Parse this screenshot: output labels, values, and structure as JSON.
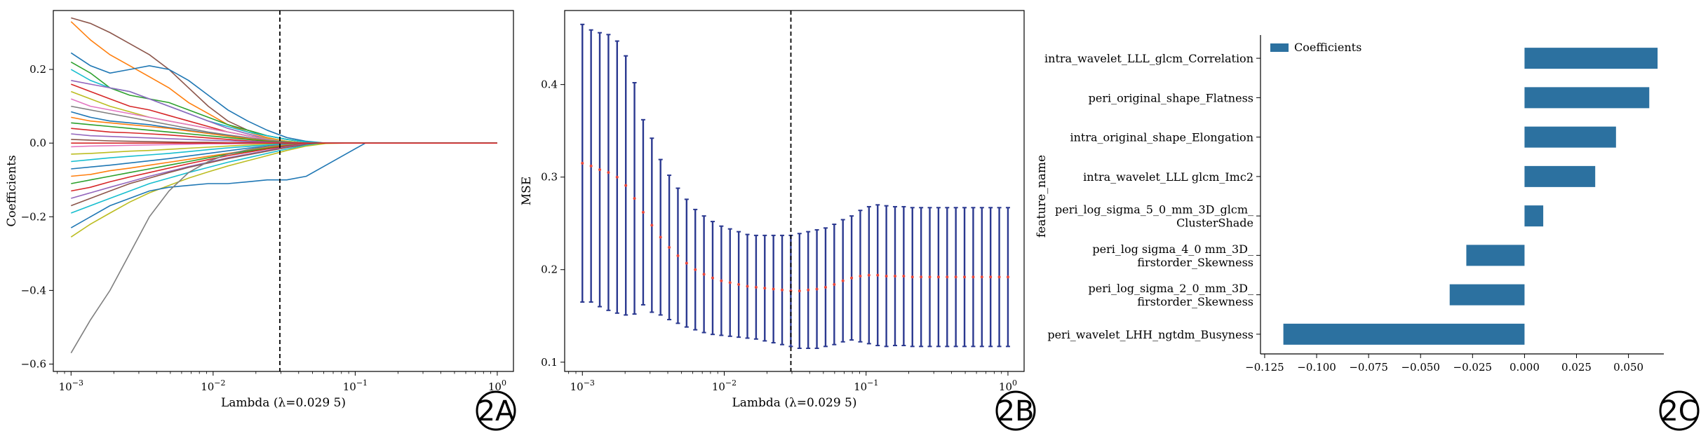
{
  "chart_data": [
    {
      "panel": "2A",
      "type": "line",
      "title": "",
      "xlabel": "Lambda (λ=0.029 5)",
      "ylabel": "Coefficients",
      "xscale": "log",
      "xlim": [
        0.00075,
        1.3
      ],
      "ylim": [
        -0.62,
        0.36
      ],
      "x_ticks": [
        0.001,
        0.01,
        0.1,
        1
      ],
      "x_tick_labels": [
        {
          "base": "10",
          "exp": "-3"
        },
        {
          "base": "10",
          "exp": "-2"
        },
        {
          "base": "10",
          "exp": "-1"
        },
        {
          "base": "10",
          "exp": "0"
        }
      ],
      "y_ticks": [
        -0.6,
        -0.4,
        -0.2,
        0.0,
        0.2
      ],
      "y_tick_labels": [
        "−0.6",
        "−0.4",
        "−0.2",
        "0.0",
        "0.2"
      ],
      "reference_line": {
        "x": 0.0295,
        "style": "dashed"
      },
      "grid": false,
      "lambda_path": [
        0.001,
        0.00137,
        0.00188,
        0.00259,
        0.00356,
        0.00489,
        0.00672,
        0.00924,
        0.0127,
        0.0175,
        0.024,
        0.033,
        0.0453,
        0.0623,
        0.0857,
        0.118,
        0.162,
        0.222,
        0.305,
        0.42,
        0.577,
        0.793,
        1.0
      ],
      "series": [
        {
          "color": "#8c564b",
          "values": [
            0.34,
            0.325,
            0.3,
            0.27,
            0.24,
            0.2,
            0.15,
            0.1,
            0.06,
            0.035,
            0.02,
            0.01,
            0.003,
            0,
            0,
            0,
            0,
            0,
            0,
            0,
            0,
            0,
            0
          ]
        },
        {
          "color": "#ff7f0e",
          "values": [
            0.33,
            0.28,
            0.24,
            0.21,
            0.18,
            0.15,
            0.11,
            0.08,
            0.05,
            0.03,
            0.015,
            0.005,
            0,
            0,
            0,
            0,
            0,
            0,
            0,
            0,
            0,
            0,
            0
          ]
        },
        {
          "color": "#1f77b4",
          "values": [
            0.245,
            0.21,
            0.19,
            0.2,
            0.21,
            0.2,
            0.17,
            0.13,
            0.09,
            0.06,
            0.035,
            0.015,
            0.005,
            0,
            0,
            0,
            0,
            0,
            0,
            0,
            0,
            0,
            0
          ]
        },
        {
          "color": "#2ca02c",
          "values": [
            0.22,
            0.19,
            0.15,
            0.13,
            0.12,
            0.11,
            0.09,
            0.07,
            0.05,
            0.035,
            0.02,
            0.01,
            0.003,
            0,
            0,
            0,
            0,
            0,
            0,
            0,
            0,
            0,
            0
          ]
        },
        {
          "color": "#17becf",
          "values": [
            0.2,
            0.17,
            0.15,
            0.14,
            0.12,
            0.1,
            0.08,
            0.06,
            0.045,
            0.03,
            0.02,
            0.01,
            0.003,
            0,
            0,
            0,
            0,
            0,
            0,
            0,
            0,
            0,
            0
          ]
        },
        {
          "color": "#9467bd",
          "values": [
            0.17,
            0.16,
            0.15,
            0.14,
            0.12,
            0.1,
            0.08,
            0.06,
            0.04,
            0.025,
            0.012,
            0.004,
            0,
            0,
            0,
            0,
            0,
            0,
            0,
            0,
            0,
            0,
            0
          ]
        },
        {
          "color": "#d62728",
          "values": [
            0.16,
            0.14,
            0.12,
            0.1,
            0.09,
            0.075,
            0.06,
            0.045,
            0.03,
            0.02,
            0.01,
            0.003,
            0,
            0,
            0,
            0,
            0,
            0,
            0,
            0,
            0,
            0,
            0
          ]
        },
        {
          "color": "#bcbd22",
          "values": [
            0.14,
            0.12,
            0.1,
            0.085,
            0.07,
            0.06,
            0.05,
            0.04,
            0.03,
            0.02,
            0.012,
            0.005,
            0,
            0,
            0,
            0,
            0,
            0,
            0,
            0,
            0,
            0,
            0
          ]
        },
        {
          "color": "#e377c2",
          "values": [
            0.12,
            0.1,
            0.09,
            0.08,
            0.07,
            0.06,
            0.05,
            0.04,
            0.03,
            0.02,
            0.01,
            0.003,
            0,
            0,
            0,
            0,
            0,
            0,
            0,
            0,
            0,
            0,
            0
          ]
        },
        {
          "color": "#7f7f7f",
          "values": [
            0.1,
            0.09,
            0.08,
            0.07,
            0.06,
            0.05,
            0.04,
            0.03,
            0.022,
            0.015,
            0.008,
            0.003,
            0,
            0,
            0,
            0,
            0,
            0,
            0,
            0,
            0,
            0,
            0
          ]
        },
        {
          "color": "#1f77b4",
          "values": [
            0.085,
            0.07,
            0.06,
            0.055,
            0.05,
            0.042,
            0.035,
            0.027,
            0.02,
            0.012,
            0.006,
            0.002,
            0,
            0,
            0,
            0,
            0,
            0,
            0,
            0,
            0,
            0,
            0
          ]
        },
        {
          "color": "#ff7f0e",
          "values": [
            0.07,
            0.06,
            0.055,
            0.05,
            0.045,
            0.04,
            0.033,
            0.026,
            0.019,
            0.012,
            0.006,
            0.002,
            0,
            0,
            0,
            0,
            0,
            0,
            0,
            0,
            0,
            0,
            0
          ]
        },
        {
          "color": "#2ca02c",
          "values": [
            0.055,
            0.05,
            0.045,
            0.04,
            0.035,
            0.03,
            0.025,
            0.02,
            0.015,
            0.01,
            0.005,
            0.002,
            0,
            0,
            0,
            0,
            0,
            0,
            0,
            0,
            0,
            0,
            0
          ]
        },
        {
          "color": "#d62728",
          "values": [
            0.04,
            0.035,
            0.03,
            0.028,
            0.025,
            0.022,
            0.018,
            0.014,
            0.01,
            0.006,
            0.003,
            0.001,
            0,
            0,
            0,
            0,
            0,
            0,
            0,
            0,
            0,
            0,
            0
          ]
        },
        {
          "color": "#9467bd",
          "values": [
            0.025,
            0.02,
            0.018,
            0.016,
            0.014,
            0.012,
            0.01,
            0.008,
            0.006,
            0.004,
            0.002,
            0.001,
            0,
            0,
            0,
            0,
            0,
            0,
            0,
            0,
            0,
            0,
            0
          ]
        },
        {
          "color": "#8c564b",
          "values": [
            0.01,
            0.008,
            0.006,
            0.005,
            0.004,
            0.003,
            0.002,
            0.002,
            0.001,
            0.001,
            0,
            0,
            0,
            0,
            0,
            0,
            0,
            0,
            0,
            0,
            0,
            0,
            0
          ]
        },
        {
          "color": "#e377c2",
          "values": [
            -0.01,
            -0.008,
            -0.007,
            -0.006,
            -0.005,
            -0.004,
            -0.003,
            -0.002,
            -0.002,
            -0.001,
            0,
            0,
            0,
            0,
            0,
            0,
            0,
            0,
            0,
            0,
            0,
            0,
            0
          ]
        },
        {
          "color": "#bcbd22",
          "values": [
            -0.03,
            -0.028,
            -0.025,
            -0.022,
            -0.02,
            -0.017,
            -0.014,
            -0.011,
            -0.008,
            -0.005,
            -0.003,
            -0.001,
            0,
            0,
            0,
            0,
            0,
            0,
            0,
            0,
            0,
            0,
            0
          ]
        },
        {
          "color": "#17becf",
          "values": [
            -0.05,
            -0.045,
            -0.04,
            -0.036,
            -0.032,
            -0.028,
            -0.023,
            -0.018,
            -0.013,
            -0.009,
            -0.005,
            -0.002,
            0,
            0,
            0,
            0,
            0,
            0,
            0,
            0,
            0,
            0,
            0
          ]
        },
        {
          "color": "#1f77b4",
          "values": [
            -0.07,
            -0.065,
            -0.06,
            -0.054,
            -0.048,
            -0.042,
            -0.035,
            -0.028,
            -0.021,
            -0.014,
            -0.008,
            -0.003,
            0,
            0,
            0,
            0,
            0,
            0,
            0,
            0,
            0,
            0,
            0
          ]
        },
        {
          "color": "#ff7f0e",
          "values": [
            -0.09,
            -0.085,
            -0.075,
            -0.068,
            -0.06,
            -0.052,
            -0.044,
            -0.036,
            -0.028,
            -0.02,
            -0.012,
            -0.005,
            -0.001,
            0,
            0,
            0,
            0,
            0,
            0,
            0,
            0,
            0,
            0
          ]
        },
        {
          "color": "#2ca02c",
          "values": [
            -0.11,
            -0.1,
            -0.09,
            -0.08,
            -0.07,
            -0.06,
            -0.05,
            -0.04,
            -0.03,
            -0.022,
            -0.014,
            -0.007,
            -0.002,
            0,
            0,
            0,
            0,
            0,
            0,
            0,
            0,
            0,
            0
          ]
        },
        {
          "color": "#d62728",
          "values": [
            -0.13,
            -0.12,
            -0.105,
            -0.092,
            -0.08,
            -0.068,
            -0.056,
            -0.045,
            -0.034,
            -0.025,
            -0.016,
            -0.008,
            -0.002,
            0,
            0,
            0,
            0,
            0,
            0,
            0,
            0,
            0,
            0
          ]
        },
        {
          "color": "#9467bd",
          "values": [
            -0.15,
            -0.135,
            -0.12,
            -0.105,
            -0.09,
            -0.077,
            -0.064,
            -0.052,
            -0.04,
            -0.03,
            -0.02,
            -0.01,
            -0.003,
            0,
            0,
            0,
            0,
            0,
            0,
            0,
            0,
            0,
            0
          ]
        },
        {
          "color": "#8c564b",
          "values": [
            -0.17,
            -0.15,
            -0.13,
            -0.11,
            -0.095,
            -0.08,
            -0.066,
            -0.054,
            -0.042,
            -0.032,
            -0.022,
            -0.012,
            -0.004,
            0,
            0,
            0,
            0,
            0,
            0,
            0,
            0,
            0,
            0
          ]
        },
        {
          "color": "#17becf",
          "values": [
            -0.19,
            -0.17,
            -0.15,
            -0.13,
            -0.11,
            -0.095,
            -0.08,
            -0.066,
            -0.052,
            -0.04,
            -0.028,
            -0.016,
            -0.006,
            0,
            0,
            0,
            0,
            0,
            0,
            0,
            0,
            0,
            0
          ]
        },
        {
          "color": "#bcbd22",
          "values": [
            -0.255,
            -0.22,
            -0.19,
            -0.16,
            -0.135,
            -0.115,
            -0.095,
            -0.078,
            -0.062,
            -0.048,
            -0.034,
            -0.02,
            -0.008,
            -0.001,
            0,
            0,
            0,
            0,
            0,
            0,
            0,
            0,
            0
          ]
        },
        {
          "color": "#1f77b4",
          "values": [
            -0.23,
            -0.2,
            -0.17,
            -0.15,
            -0.13,
            -0.12,
            -0.115,
            -0.11,
            -0.11,
            -0.105,
            -0.1,
            -0.1,
            -0.09,
            -0.06,
            -0.03,
            0,
            0,
            0,
            0,
            0,
            0,
            0,
            0
          ]
        },
        {
          "color": "#7f7f7f",
          "values": [
            -0.57,
            -0.48,
            -0.4,
            -0.3,
            -0.2,
            -0.13,
            -0.08,
            -0.05,
            -0.03,
            -0.018,
            -0.009,
            -0.003,
            0,
            0,
            0,
            0,
            0,
            0,
            0,
            0,
            0,
            0,
            0
          ]
        },
        {
          "color": "#d62728",
          "values": [
            0,
            0,
            0,
            0,
            0,
            0,
            0,
            0,
            0,
            0,
            0,
            0,
            0,
            0,
            0,
            0,
            0,
            0,
            0,
            0,
            0,
            0,
            0
          ]
        }
      ]
    },
    {
      "panel": "2B",
      "type": "errorbar",
      "title": "",
      "xlabel": "Lambda (λ=0.029 5)",
      "ylabel": "MSE",
      "xscale": "log",
      "xlim": [
        0.00075,
        1.3
      ],
      "ylim": [
        0.09,
        0.48
      ],
      "x_ticks": [
        0.001,
        0.01,
        0.1,
        1
      ],
      "x_tick_labels": [
        {
          "base": "10",
          "exp": "-3"
        },
        {
          "base": "10",
          "exp": "-2"
        },
        {
          "base": "10",
          "exp": "-1"
        },
        {
          "base": "10",
          "exp": "0"
        }
      ],
      "y_ticks": [
        0.1,
        0.2,
        0.3,
        0.4
      ],
      "y_tick_labels": [
        "0.1",
        "0.2",
        "0.3",
        "0.4"
      ],
      "reference_line": {
        "x": 0.0295,
        "style": "dashed"
      },
      "grid": false,
      "errorbar_color": "#2b3990",
      "point_color": "#e8473c",
      "log10_lambda_start": -3,
      "log10_lambda_end": 0,
      "mse": [
        0.315,
        0.312,
        0.308,
        0.305,
        0.3,
        0.291,
        0.277,
        0.262,
        0.248,
        0.235,
        0.224,
        0.215,
        0.207,
        0.2,
        0.195,
        0.191,
        0.188,
        0.186,
        0.184,
        0.182,
        0.181,
        0.18,
        0.179,
        0.178,
        0.177,
        0.177,
        0.178,
        0.179,
        0.181,
        0.184,
        0.188,
        0.191,
        0.193,
        0.194,
        0.194,
        0.193,
        0.193,
        0.193,
        0.192,
        0.192,
        0.192,
        0.192,
        0.192,
        0.192,
        0.192,
        0.192,
        0.192,
        0.192,
        0.192,
        0.192
      ],
      "half_width": [
        0.15,
        0.147,
        0.148,
        0.149,
        0.147,
        0.14,
        0.125,
        0.1,
        0.094,
        0.084,
        0.078,
        0.073,
        0.069,
        0.065,
        0.063,
        0.061,
        0.059,
        0.058,
        0.057,
        0.056,
        0.056,
        0.057,
        0.058,
        0.059,
        0.06,
        0.062,
        0.063,
        0.064,
        0.064,
        0.065,
        0.066,
        0.067,
        0.071,
        0.074,
        0.076,
        0.076,
        0.075,
        0.075,
        0.075,
        0.075,
        0.075,
        0.075,
        0.075,
        0.075,
        0.075,
        0.075,
        0.075,
        0.075,
        0.075,
        0.075
      ]
    },
    {
      "panel": "2C",
      "type": "bar",
      "orientation": "horizontal",
      "title": "",
      "xlabel": "",
      "ylabel": "feature_name",
      "legend": {
        "label": "Coefficients",
        "position": "top-left"
      },
      "bar_color": "#2c71a0",
      "xlim": [
        -0.127,
        0.067
      ],
      "x_ticks": [
        -0.125,
        -0.1,
        -0.075,
        -0.05,
        -0.025,
        0,
        0.025,
        0.05
      ],
      "x_tick_labels": [
        "−0.125",
        "−0.100",
        "−0.075",
        "−0.050",
        "−0.025",
        "0.000",
        "0.025",
        "0.050"
      ],
      "categories": [
        [
          "intra_wavelet_LLL_glcm_Correlation"
        ],
        [
          "peri_original_shape_Flatness"
        ],
        [
          "intra_original_shape_Elongation"
        ],
        [
          "intra_wavelet_LLL glcm_Imc2"
        ],
        [
          "peri_log_sigma_5_0_mm_3D_glcm_",
          "ClusterShade"
        ],
        [
          "peri_log sigma_4_0 mm_3D_",
          "firstorder_Skewness"
        ],
        [
          "peri_log_sigma_2_0_mm_3D_",
          "firstorder_Skewness"
        ],
        [
          "peri_wavelet_LHH_ngtdm_Busyness"
        ]
      ],
      "values": [
        0.064,
        0.06,
        0.044,
        0.034,
        0.009,
        -0.028,
        -0.036,
        -0.116
      ]
    }
  ],
  "panel_tags": [
    "2A",
    "2B",
    "2C"
  ]
}
